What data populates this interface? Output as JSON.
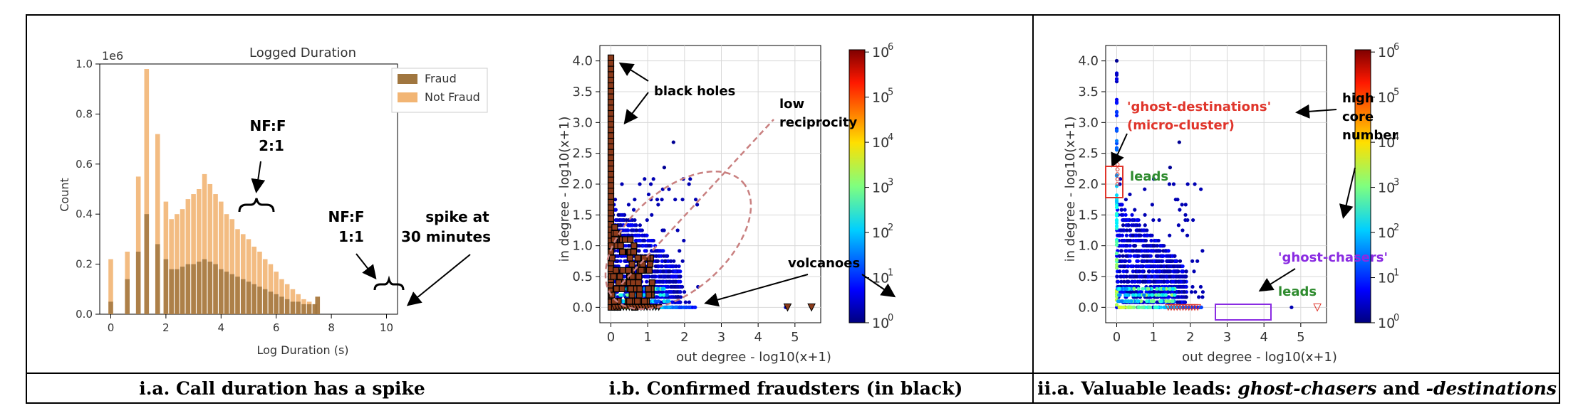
{
  "captions": {
    "a": "i.a. Call duration has a spike",
    "b": "i.b. Confirmed fraudsters (in black)",
    "c_prefix": "ii.a. Valuable leads: ",
    "c_em1": "ghost-chasers",
    "c_mid": " and ",
    "c_em2": "-destinations"
  },
  "colors": {
    "fraud": "#a0763f",
    "not_fraud": "#f2b574",
    "annotation_purple": "#8a2be2",
    "annotation_red": "#e0352b",
    "annotation_green": "#2e8b2e",
    "ellipse": "#c98080"
  },
  "chart_data": [
    {
      "type": "bar",
      "title": "Logged Duration",
      "xlabel": "Log Duration (s)",
      "ylabel": "Count",
      "y_multiplier_label": "1e6",
      "xlim": [
        -0.4,
        10.4
      ],
      "ylim": [
        0,
        1.0
      ],
      "xticks": [
        "0",
        "2",
        "4",
        "6",
        "8",
        "10"
      ],
      "yticks": [
        "0.0",
        "0.2",
        "0.4",
        "0.6",
        "0.8",
        "1.0"
      ],
      "legend": {
        "position": "top-right",
        "entries": [
          "Fraud",
          "Not Fraud"
        ]
      },
      "series": [
        {
          "name": "Not Fraud",
          "x": [
            0,
            0.6,
            1.0,
            1.3,
            1.7,
            2.0,
            2.2,
            2.4,
            2.6,
            2.8,
            3.0,
            3.2,
            3.4,
            3.6,
            3.8,
            4.0,
            4.2,
            4.4,
            4.6,
            4.8,
            5.0,
            5.2,
            5.4,
            5.6,
            5.8,
            6.0,
            6.2,
            6.4,
            6.6,
            6.8,
            7.0,
            7.2,
            7.4,
            7.5
          ],
          "values": [
            0.22,
            0.25,
            0.55,
            0.98,
            0.72,
            0.45,
            0.38,
            0.4,
            0.42,
            0.46,
            0.48,
            0.5,
            0.56,
            0.52,
            0.48,
            0.45,
            0.4,
            0.38,
            0.34,
            0.32,
            0.3,
            0.27,
            0.25,
            0.22,
            0.2,
            0.17,
            0.14,
            0.12,
            0.1,
            0.08,
            0.06,
            0.05,
            0.04,
            0.07
          ]
        },
        {
          "name": "Fraud",
          "x": [
            0,
            0.6,
            1.0,
            1.3,
            1.7,
            2.0,
            2.2,
            2.4,
            2.6,
            2.8,
            3.0,
            3.2,
            3.4,
            3.6,
            3.8,
            4.0,
            4.2,
            4.4,
            4.6,
            4.8,
            5.0,
            5.2,
            5.4,
            5.6,
            5.8,
            6.0,
            6.2,
            6.4,
            6.6,
            6.8,
            7.0,
            7.2,
            7.4,
            7.5
          ],
          "values": [
            0.05,
            0.14,
            0.25,
            0.4,
            0.28,
            0.22,
            0.18,
            0.18,
            0.19,
            0.2,
            0.2,
            0.21,
            0.22,
            0.21,
            0.2,
            0.18,
            0.17,
            0.16,
            0.15,
            0.14,
            0.13,
            0.12,
            0.11,
            0.1,
            0.09,
            0.08,
            0.07,
            0.06,
            0.05,
            0.05,
            0.04,
            0.04,
            0.04,
            0.07
          ]
        }
      ],
      "annotations": [
        "NF:F",
        "2:1",
        "NF:F",
        "1:1",
        "spike at",
        "30  minutes"
      ]
    },
    {
      "type": "scatter",
      "xlabel": "out degree - log10(x+1)",
      "ylabel": "in degree - log10(x+1)",
      "xlim": [
        -0.3,
        5.7
      ],
      "ylim": [
        -0.25,
        4.25
      ],
      "xticks": [
        "0",
        "1",
        "2",
        "3",
        "4",
        "5"
      ],
      "yticks": [
        "0.0",
        "0.5",
        "1.0",
        "1.5",
        "2.0",
        "2.5",
        "3.0",
        "3.5",
        "4.0"
      ],
      "colorbar": {
        "ticks": [
          "10",
          "10",
          "10",
          "10",
          "10",
          "10",
          "10"
        ],
        "exponents": [
          "0",
          "1",
          "2",
          "3",
          "4",
          "5",
          "6"
        ],
        "scale": "log"
      },
      "annotations": [
        "black holes",
        "low",
        "reciprocity",
        "volcanoes"
      ]
    },
    {
      "type": "scatter",
      "xlabel": "out degree - log10(x+1)",
      "ylabel": "in degree - log10(x+1)",
      "xlim": [
        -0.3,
        5.7
      ],
      "ylim": [
        -0.25,
        4.25
      ],
      "xticks": [
        "0",
        "1",
        "2",
        "3",
        "4",
        "5"
      ],
      "yticks": [
        "0.0",
        "0.5",
        "1.0",
        "1.5",
        "2.0",
        "2.5",
        "3.0",
        "3.5",
        "4.0"
      ],
      "colorbar": {
        "ticks": [
          "10",
          "10",
          "10",
          "10",
          "10",
          "10",
          "10"
        ],
        "exponents": [
          "0",
          "1",
          "2",
          "3",
          "4",
          "5",
          "6"
        ],
        "scale": "log"
      },
      "annotations": [
        "'ghost-destinations'",
        "(micro-cluster)",
        "high",
        "core",
        "number",
        "leads",
        "'ghost-chasers'",
        "leads"
      ]
    }
  ]
}
